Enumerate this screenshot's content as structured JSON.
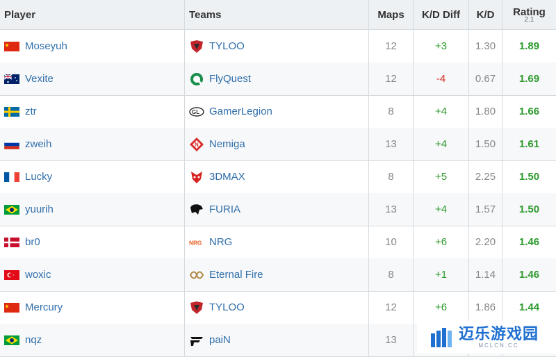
{
  "headers": {
    "player": "Player",
    "teams": "Teams",
    "maps": "Maps",
    "kd_diff": "K/D Diff",
    "kd": "K/D",
    "rating": "Rating",
    "rating_version": "2.1"
  },
  "rows": [
    {
      "player": "Moseyuh",
      "flag": "china-flag-icon",
      "team": "TYLOO",
      "team_logo": "tyloo-logo-icon",
      "maps": "12",
      "kd_diff": "+3",
      "kd": "1.30",
      "rating": "1.89"
    },
    {
      "player": "Vexite",
      "flag": "australia-flag-icon",
      "team": "FlyQuest",
      "team_logo": "flyquest-logo-icon",
      "maps": "12",
      "kd_diff": "-4",
      "kd": "0.67",
      "rating": "1.69"
    },
    {
      "player": "ztr",
      "flag": "sweden-flag-icon",
      "team": "GamerLegion",
      "team_logo": "gamerlegion-logo-icon",
      "maps": "8",
      "kd_diff": "+4",
      "kd": "1.80",
      "rating": "1.66"
    },
    {
      "player": "zweih",
      "flag": "russia-flag-icon",
      "team": "Nemiga",
      "team_logo": "nemiga-logo-icon",
      "maps": "13",
      "kd_diff": "+4",
      "kd": "1.50",
      "rating": "1.61"
    },
    {
      "player": "Lucky",
      "flag": "france-flag-icon",
      "team": "3DMAX",
      "team_logo": "3dmax-logo-icon",
      "maps": "8",
      "kd_diff": "+5",
      "kd": "2.25",
      "rating": "1.50"
    },
    {
      "player": "yuurih",
      "flag": "brazil-flag-icon",
      "team": "FURIA",
      "team_logo": "furia-logo-icon",
      "maps": "13",
      "kd_diff": "+4",
      "kd": "1.57",
      "rating": "1.50"
    },
    {
      "player": "br0",
      "flag": "denmark-flag-icon",
      "team": "NRG",
      "team_logo": "nrg-logo-icon",
      "maps": "10",
      "kd_diff": "+6",
      "kd": "2.20",
      "rating": "1.46"
    },
    {
      "player": "woxic",
      "flag": "turkey-flag-icon",
      "team": "Eternal Fire",
      "team_logo": "eternal-fire-logo-icon",
      "maps": "8",
      "kd_diff": "+1",
      "kd": "1.14",
      "rating": "1.46"
    },
    {
      "player": "Mercury",
      "flag": "china-flag-icon",
      "team": "TYLOO",
      "team_logo": "tyloo-logo-icon",
      "maps": "12",
      "kd_diff": "+6",
      "kd": "1.86",
      "rating": "1.44"
    },
    {
      "player": "nqz",
      "flag": "brazil-flag-icon",
      "team": "paiN",
      "team_logo": "pain-logo-icon",
      "maps": "13",
      "kd_diff": "",
      "kd": "",
      "rating": ""
    }
  ],
  "watermark": {
    "main": "迈乐游戏园",
    "sub": "MCLCN.CC",
    "color": "#1e6fd0"
  },
  "colors": {
    "link": "#2f6eaa",
    "positive": "#2d9a2d",
    "negative": "#d9302c",
    "header_bg": "#eef1f4"
  }
}
